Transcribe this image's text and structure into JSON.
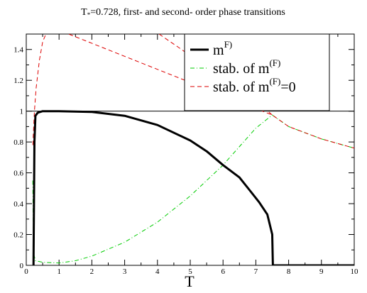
{
  "chart_data": {
    "type": "line",
    "title_main": "T",
    "title_sub": "*",
    "title_rest": "=0.728, first- and second- order phase transitions",
    "xlabel": "T",
    "ylabel": "",
    "xlim": [
      0,
      10
    ],
    "ylim": [
      0,
      1.5
    ],
    "xticks": [
      "0",
      "1",
      "2",
      "3",
      "4",
      "5",
      "6",
      "7",
      "8",
      "9",
      "10"
    ],
    "yticks": [
      "0",
      "0.2",
      "0.4",
      "0.6",
      "0.8",
      "1",
      "1.2",
      "1.4"
    ],
    "legend_position": "top-right",
    "reference_line_y": 1,
    "series": [
      {
        "name_base": "m",
        "name_sup": "F)",
        "name_rest": "",
        "style": "solid",
        "color": "#000000",
        "x": [
          0.22,
          0.25,
          0.28,
          0.35,
          0.5,
          1,
          2,
          3,
          4,
          5,
          5.5,
          6,
          6.5,
          6.8,
          7.1,
          7.35,
          7.5,
          7.52,
          8,
          9,
          10
        ],
        "y": [
          0,
          0.8,
          0.97,
          0.99,
          1.0,
          1.0,
          0.995,
          0.97,
          0.91,
          0.81,
          0.74,
          0.65,
          0.57,
          0.49,
          0.41,
          0.33,
          0.2,
          0,
          0,
          0,
          0
        ]
      },
      {
        "name_base": "stab. of m",
        "name_sup": "(F)",
        "name_rest": "",
        "style": "dashdot",
        "color": "#00cc00",
        "x": [
          0.2,
          0.22,
          0.28,
          0.5,
          1,
          1.5,
          2,
          3,
          4,
          5,
          6,
          7,
          7.5,
          8,
          9,
          10
        ],
        "y": [
          0.55,
          0.08,
          0.03,
          0.02,
          0.015,
          0.03,
          0.06,
          0.15,
          0.28,
          0.45,
          0.65,
          0.89,
          0.975,
          0.9,
          0.82,
          0.76
        ]
      },
      {
        "name_base": "stab. of m",
        "name_sup": "(F)",
        "name_rest": "=0",
        "style": "dashed",
        "color": "#dd0000",
        "x": [
          0.2,
          0.25,
          0.3,
          0.4,
          0.5,
          0.6,
          0.7,
          7.5,
          8,
          9,
          10
        ],
        "y": [
          0.78,
          1.0,
          1.15,
          1.33,
          1.45,
          1.5,
          1.55,
          0.975,
          0.9,
          0.82,
          0.76
        ]
      },
      {
        "name_base": "",
        "name_sup": "",
        "name_rest": "",
        "style": "dashed",
        "color": "#dd0000",
        "x": [
          4.05,
          4.6,
          5,
          5.5,
          6,
          6.5,
          7,
          7.5
        ],
        "y": [
          1.5,
          1.42,
          1.36,
          1.3,
          1.22,
          1.15,
          1.07,
          0.975
        ]
      }
    ]
  }
}
